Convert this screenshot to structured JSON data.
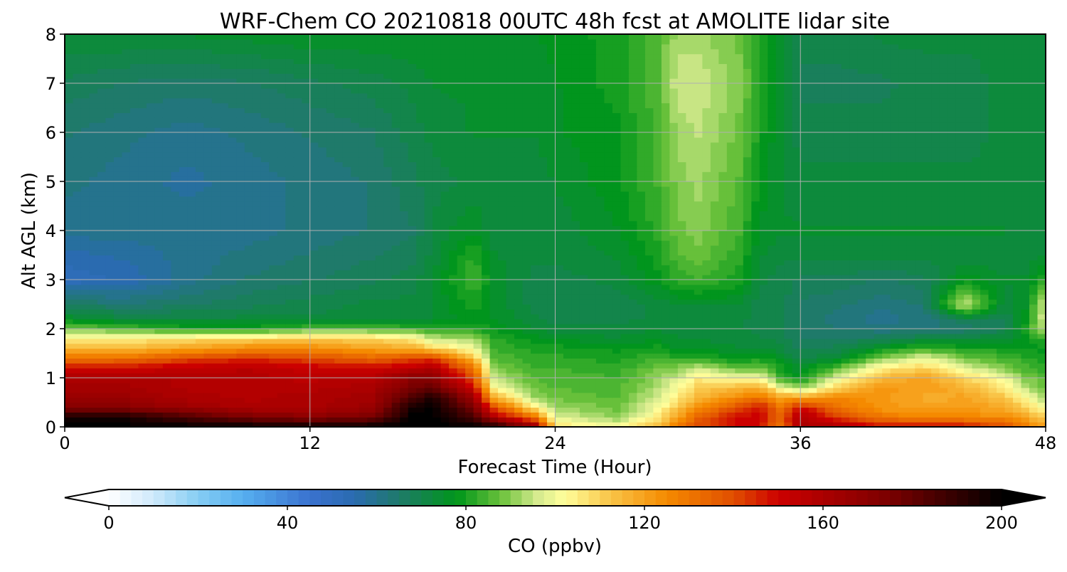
{
  "chart_data": {
    "type": "heatmap",
    "title": "WRF-Chem CO  20210818 00UTC 48h fcst at AMOLITE lidar site",
    "xlabel": "Forecast Time (Hour)",
    "ylabel": "Alt AGL (km)",
    "xlim": [
      0,
      48
    ],
    "ylim": [
      0,
      8
    ],
    "xticks": [
      0,
      12,
      24,
      36,
      48
    ],
    "yticks": [
      0,
      1,
      2,
      3,
      4,
      5,
      6,
      7,
      8
    ],
    "grid": true,
    "z_units": "ppbv",
    "x_hours": [
      0,
      3,
      6,
      9,
      12,
      15,
      17,
      18,
      20,
      21,
      23,
      24,
      27,
      29,
      30,
      31,
      33,
      34,
      35,
      36,
      38,
      40,
      42,
      43,
      44,
      46,
      47,
      48
    ],
    "y_km": [
      0,
      0.2,
      0.4,
      0.6,
      0.8,
      1.0,
      1.2,
      1.4,
      1.6,
      1.8,
      2.0,
      2.2,
      2.5,
      3.0,
      3.5,
      4.0,
      5.0,
      6.0,
      7.0,
      8.0
    ],
    "co_ppbv": [
      [
        200,
        200,
        200,
        200,
        200,
        200,
        200,
        200,
        200,
        196,
        170,
        108,
        102,
        115,
        130,
        140,
        150,
        150,
        130,
        160,
        160,
        150,
        150,
        150,
        150,
        140,
        130,
        120
      ],
      [
        195,
        195,
        185,
        175,
        170,
        175,
        200,
        200,
        185,
        160,
        130,
        98,
        90,
        105,
        120,
        135,
        150,
        150,
        135,
        160,
        140,
        130,
        125,
        125,
        125,
        125,
        120,
        110
      ],
      [
        170,
        170,
        165,
        160,
        160,
        165,
        195,
        200,
        175,
        140,
        105,
        92,
        88,
        100,
        112,
        125,
        140,
        150,
        130,
        150,
        130,
        122,
        120,
        120,
        122,
        118,
        110,
        100
      ],
      [
        165,
        165,
        160,
        158,
        160,
        163,
        185,
        195,
        165,
        118,
        92,
        88,
        86,
        96,
        106,
        115,
        125,
        130,
        120,
        120,
        126,
        122,
        118,
        118,
        120,
        112,
        102,
        92
      ],
      [
        162,
        162,
        158,
        158,
        158,
        160,
        175,
        180,
        150,
        103,
        88,
        86,
        85,
        93,
        102,
        110,
        115,
        118,
        100,
        90,
        112,
        122,
        120,
        120,
        116,
        106,
        95,
        88
      ],
      [
        160,
        160,
        158,
        158,
        155,
        158,
        170,
        170,
        140,
        95,
        86,
        85,
        84,
        91,
        96,
        105,
        100,
        100,
        85,
        78,
        100,
        115,
        120,
        115,
        110,
        100,
        90,
        85
      ],
      [
        150,
        150,
        154,
        156,
        152,
        150,
        155,
        160,
        130,
        90,
        84,
        84,
        82,
        88,
        90,
        96,
        86,
        88,
        80,
        74,
        88,
        105,
        110,
        105,
        98,
        90,
        85,
        82
      ],
      [
        130,
        132,
        140,
        145,
        140,
        135,
        140,
        145,
        115,
        86,
        82,
        82,
        80,
        84,
        82,
        82,
        78,
        80,
        76,
        70,
        75,
        90,
        98,
        95,
        88,
        84,
        82,
        80
      ],
      [
        115,
        115,
        120,
        125,
        125,
        120,
        118,
        110,
        100,
        84,
        80,
        80,
        78,
        80,
        76,
        76,
        74,
        74,
        72,
        68,
        70,
        78,
        84,
        82,
        80,
        80,
        78,
        78
      ],
      [
        105,
        105,
        108,
        110,
        112,
        110,
        105,
        95,
        92,
        82,
        78,
        76,
        74,
        76,
        74,
        74,
        72,
        72,
        70,
        66,
        66,
        68,
        72,
        72,
        72,
        74,
        78,
        82
      ],
      [
        90,
        85,
        80,
        80,
        85,
        85,
        84,
        82,
        82,
        78,
        74,
        72,
        72,
        74,
        72,
        72,
        72,
        70,
        70,
        66,
        64,
        62,
        62,
        64,
        64,
        68,
        80,
        96
      ],
      [
        76,
        72,
        72,
        72,
        72,
        72,
        72,
        74,
        78,
        76,
        72,
        70,
        70,
        72,
        72,
        72,
        72,
        70,
        70,
        66,
        62,
        60,
        62,
        64,
        70,
        68,
        78,
        98
      ],
      [
        66,
        64,
        66,
        68,
        70,
        72,
        72,
        74,
        80,
        76,
        70,
        70,
        70,
        72,
        74,
        74,
        74,
        70,
        70,
        66,
        64,
        62,
        64,
        80,
        96,
        72,
        75,
        98
      ],
      [
        52,
        54,
        60,
        64,
        66,
        68,
        70,
        74,
        84,
        76,
        70,
        70,
        72,
        78,
        82,
        84,
        80,
        72,
        70,
        68,
        68,
        66,
        68,
        72,
        78,
        74,
        74,
        82
      ],
      [
        55,
        57,
        60,
        62,
        64,
        66,
        68,
        72,
        82,
        74,
        72,
        72,
        74,
        80,
        86,
        88,
        82,
        74,
        72,
        72,
        72,
        72,
        72,
        72,
        72,
        72,
        72,
        74
      ],
      [
        60,
        60,
        60,
        60,
        62,
        64,
        66,
        72,
        76,
        72,
        72,
        72,
        76,
        82,
        88,
        90,
        84,
        76,
        74,
        74,
        74,
        74,
        74,
        74,
        74,
        74,
        72,
        72
      ],
      [
        62,
        60,
        58,
        60,
        62,
        64,
        68,
        70,
        72,
        72,
        72,
        74,
        78,
        84,
        90,
        92,
        86,
        78,
        74,
        72,
        72,
        72,
        72,
        72,
        72,
        72,
        72,
        72
      ],
      [
        64,
        62,
        60,
        62,
        64,
        66,
        70,
        72,
        74,
        74,
        74,
        76,
        78,
        84,
        92,
        94,
        88,
        80,
        74,
        70,
        70,
        70,
        70,
        70,
        70,
        72,
        72,
        72
      ],
      [
        68,
        66,
        65,
        66,
        68,
        70,
        72,
        74,
        74,
        74,
        75,
        76,
        80,
        86,
        96,
        96,
        90,
        82,
        74,
        68,
        68,
        68,
        70,
        70,
        70,
        72,
        72,
        72
      ],
      [
        74,
        74,
        74,
        75,
        76,
        76,
        76,
        76,
        76,
        76,
        76,
        77,
        80,
        86,
        92,
        92,
        88,
        80,
        76,
        70,
        70,
        72,
        72,
        72,
        72,
        72,
        72,
        72
      ]
    ]
  },
  "colorbar": {
    "label": "CO  (ppbv)",
    "min": 0,
    "max": 200,
    "ticks": [
      0,
      40,
      80,
      120,
      160,
      200
    ],
    "extend": "both",
    "color_stops": [
      [
        0,
        "#ffffff"
      ],
      [
        10,
        "#cfe9fb"
      ],
      [
        20,
        "#86cdf3"
      ],
      [
        30,
        "#56aff0"
      ],
      [
        45,
        "#3a72cf"
      ],
      [
        55,
        "#2a6bb0"
      ],
      [
        65,
        "#1f7a6a"
      ],
      [
        78,
        "#00961a"
      ],
      [
        88,
        "#6cc23c"
      ],
      [
        96,
        "#d5ea8e"
      ],
      [
        102,
        "#ffff9c"
      ],
      [
        112,
        "#f9c64a"
      ],
      [
        125,
        "#f58a00"
      ],
      [
        140,
        "#e04e00"
      ],
      [
        150,
        "#cc0000"
      ],
      [
        175,
        "#7a0000"
      ],
      [
        200,
        "#000000"
      ]
    ]
  }
}
